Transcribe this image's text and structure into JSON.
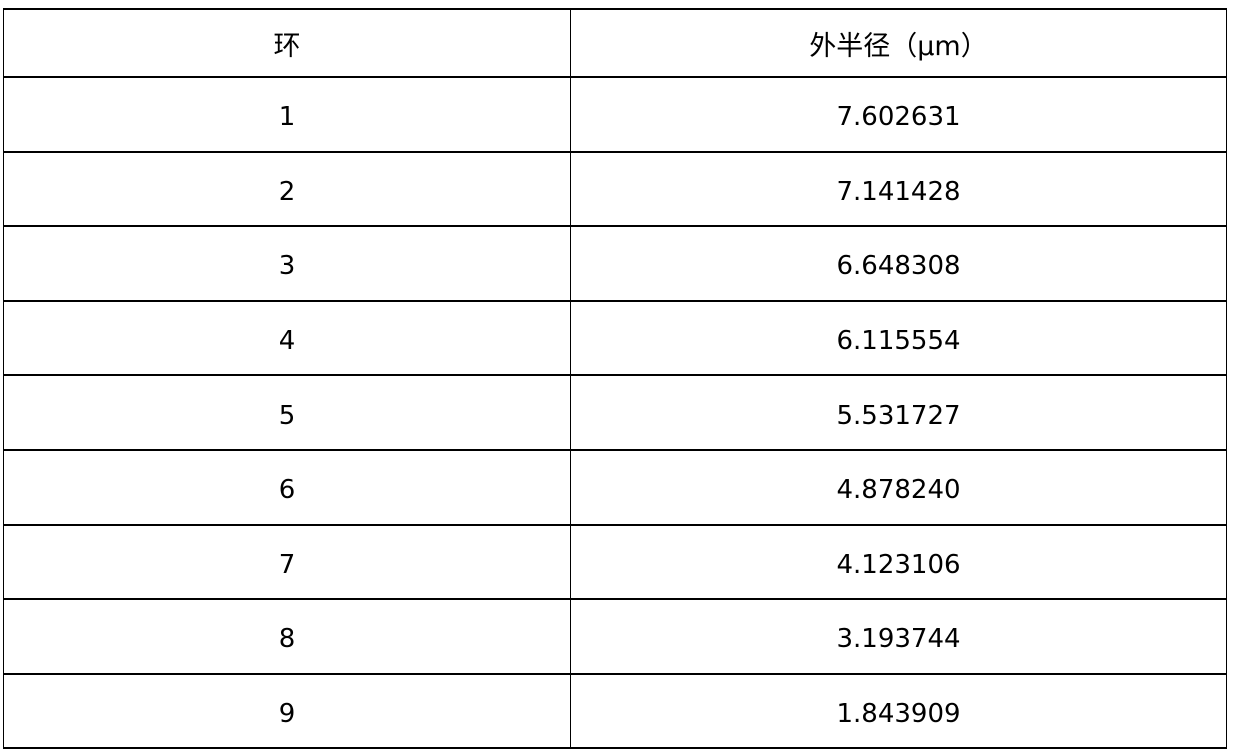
{
  "table": {
    "headers": [
      "环",
      "外半径（μm）"
    ],
    "rows": [
      [
        "1",
        "7.602631"
      ],
      [
        "2",
        "7.141428"
      ],
      [
        "3",
        "6.648308"
      ],
      [
        "4",
        "6.115554"
      ],
      [
        "5",
        "5.531727"
      ],
      [
        "6",
        "4.878240"
      ],
      [
        "7",
        "4.123106"
      ],
      [
        "8",
        "3.193744"
      ],
      [
        "9",
        "1.843909"
      ]
    ]
  }
}
